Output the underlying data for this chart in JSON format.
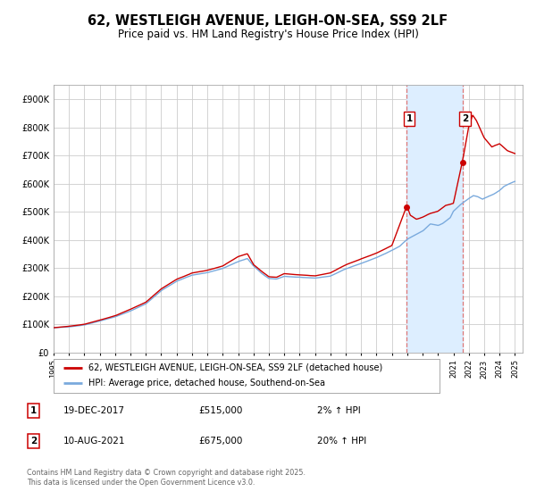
{
  "title": "62, WESTLEIGH AVENUE, LEIGH-ON-SEA, SS9 2LF",
  "subtitle": "Price paid vs. HM Land Registry's House Price Index (HPI)",
  "legend_line1": "62, WESTLEIGH AVENUE, LEIGH-ON-SEA, SS9 2LF (detached house)",
  "legend_line2": "HPI: Average price, detached house, Southend-on-Sea",
  "footnote": "Contains HM Land Registry data © Crown copyright and database right 2025.\nThis data is licensed under the Open Government Licence v3.0.",
  "sale1_date": "19-DEC-2017",
  "sale1_price": "£515,000",
  "sale1_hpi": "2% ↑ HPI",
  "sale2_date": "10-AUG-2021",
  "sale2_price": "£675,000",
  "sale2_hpi": "20% ↑ HPI",
  "sale1_x": 2017.97,
  "sale1_y": 515000,
  "sale2_x": 2021.61,
  "sale2_y": 675000,
  "vline1_x": 2017.97,
  "vline2_x": 2021.61,
  "line1_color": "#cc0000",
  "line2_color": "#7aaadd",
  "vline_color": "#dd7777",
  "shade_color": "#ddeeff",
  "grid_color": "#cccccc",
  "background_color": "#ffffff",
  "ylim": [
    0,
    950000
  ],
  "xlim": [
    1995,
    2025.5
  ],
  "title_fontsize": 10.5,
  "subtitle_fontsize": 8.5
}
